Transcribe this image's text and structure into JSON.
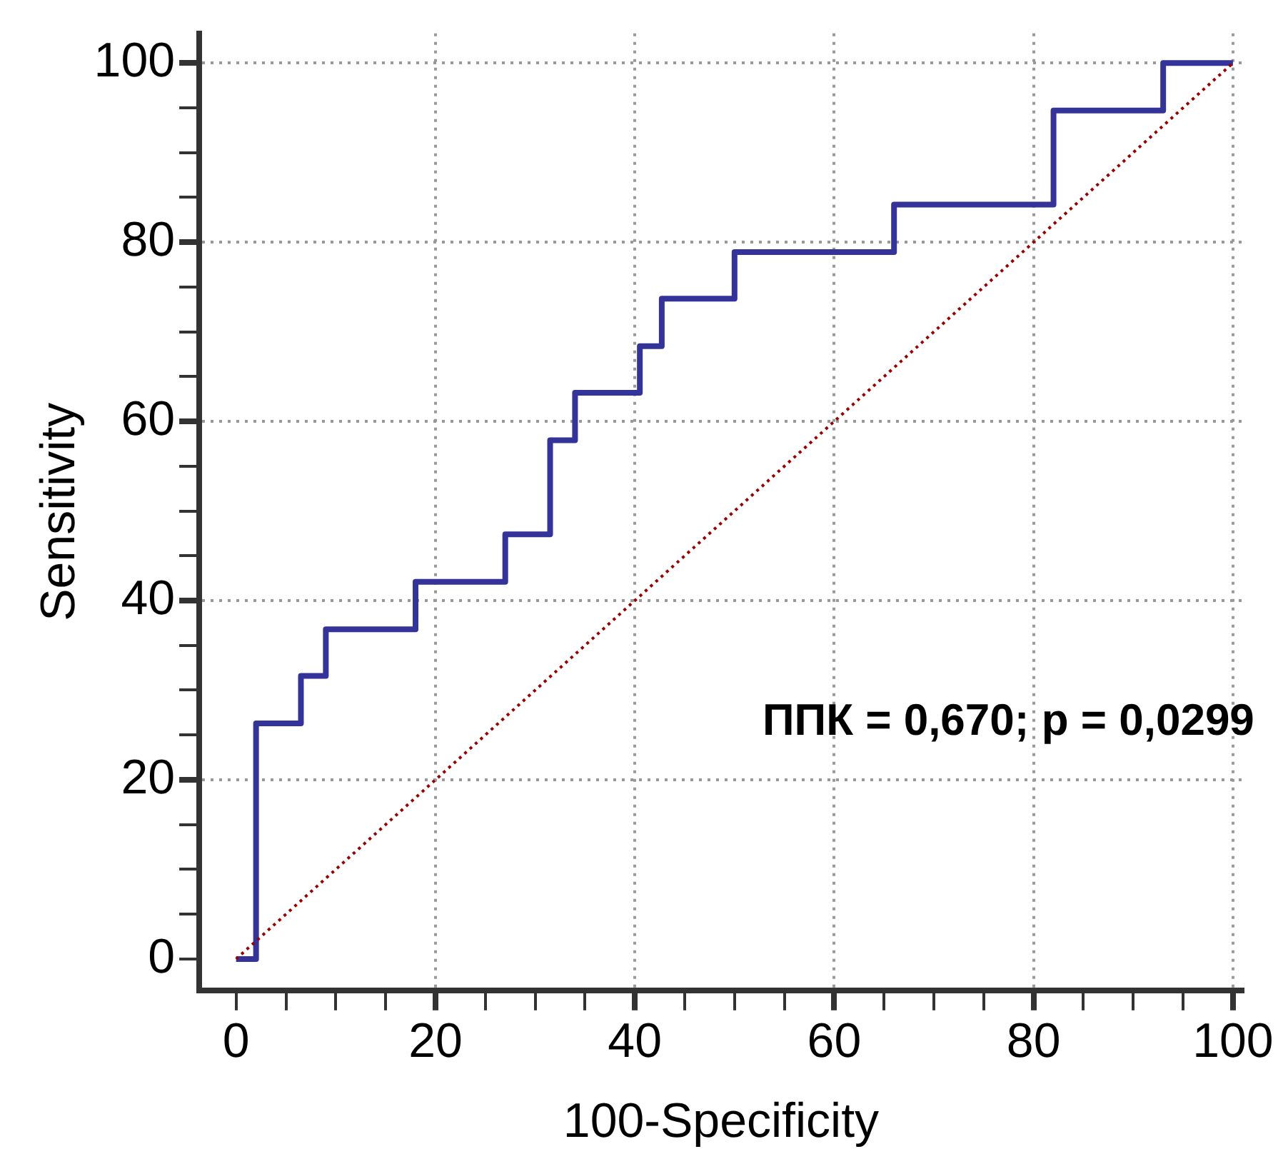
{
  "chart_data": {
    "type": "line",
    "xlabel": "100-Specificity",
    "ylabel": "Sensitivity",
    "series": [
      {
        "type": "step",
        "color": "#333399",
        "x": [
          0,
          2,
          6.5,
          9,
          18,
          27,
          31.5,
          34,
          40.5,
          42.7,
          50,
          66,
          82,
          93,
          100
        ],
        "values": [
          0,
          26.3,
          31.6,
          36.8,
          42.1,
          47.4,
          57.9,
          63.2,
          68.4,
          73.7,
          78.9,
          84.2,
          94.7,
          100,
          100
        ]
      },
      {
        "type": "line",
        "color": "#990000",
        "line_style": "dotted",
        "x": [
          0,
          100
        ],
        "values": [
          0,
          100
        ]
      }
    ],
    "xlim": [
      -3.7,
      101
    ],
    "ylim": [
      -3.5,
      103.3
    ],
    "xticks": [
      0,
      {
        "value": 5,
        "label": null
      },
      {
        "value": 10,
        "label": null
      },
      {
        "value": 15,
        "label": null
      },
      20,
      {
        "value": 25,
        "label": null
      },
      {
        "value": 30,
        "label": null
      },
      {
        "value": 35,
        "label": null
      },
      40,
      {
        "value": 45,
        "label": null
      },
      {
        "value": 50,
        "label": null
      },
      {
        "value": 55,
        "label": null
      },
      60,
      {
        "value": 65,
        "label": null
      },
      {
        "value": 70,
        "label": null
      },
      {
        "value": 75,
        "label": null
      },
      80,
      {
        "value": 85,
        "label": null
      },
      {
        "value": 90,
        "label": null
      },
      {
        "value": 95,
        "label": null
      },
      100
    ],
    "yticks": [
      0,
      {
        "value": 5,
        "label": null
      },
      {
        "value": 10,
        "label": null
      },
      {
        "value": 15,
        "label": null
      },
      20,
      {
        "value": 25,
        "label": null
      },
      {
        "value": 30,
        "label": null
      },
      {
        "value": 35,
        "label": null
      },
      40,
      {
        "value": 45,
        "label": null
      },
      {
        "value": 50,
        "label": null
      },
      {
        "value": 55,
        "label": null
      },
      60,
      {
        "value": 65,
        "label": null
      },
      {
        "value": 70,
        "label": null
      },
      {
        "value": 75,
        "label": null
      },
      80,
      {
        "value": 85,
        "label": null
      },
      {
        "value": 90,
        "label": null
      },
      {
        "value": 95,
        "label": null
      },
      100
    ],
    "grid": true,
    "legend": false,
    "marker": "none",
    "annotations": [
      "ППК = 0,670; p = 0,0299"
    ]
  }
}
